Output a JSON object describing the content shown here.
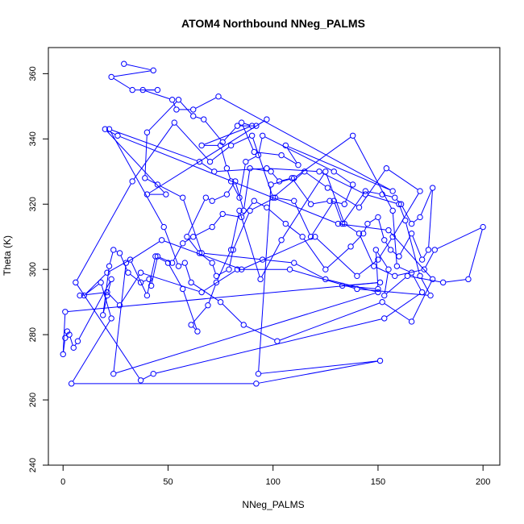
{
  "chart_data": {
    "type": "line",
    "title": "ATOM4 Northbound NNeg_PALMS",
    "xlabel": "NNeg_PALMS",
    "ylabel": "Theta (K)",
    "xlim": [
      -7,
      208
    ],
    "ylim": [
      240,
      368
    ],
    "x_ticks": [
      0,
      50,
      100,
      150,
      200
    ],
    "y_ticks": [
      240,
      260,
      280,
      300,
      320,
      340,
      360
    ],
    "grid": false,
    "legend": "none",
    "markers": "open-circle",
    "series": [
      {
        "color": "#0000ff",
        "points": [
          [
            29,
            363
          ],
          [
            43,
            361
          ],
          [
            23,
            359
          ],
          [
            33,
            355
          ],
          [
            45,
            355
          ],
          [
            38,
            355
          ],
          [
            52,
            352
          ],
          [
            54,
            349
          ],
          [
            62,
            349
          ],
          [
            74,
            353
          ],
          [
            157,
            324
          ],
          [
            106,
            338
          ],
          [
            112,
            332
          ],
          [
            104,
            335
          ],
          [
            91,
            336
          ],
          [
            85,
            345
          ],
          [
            90,
            344
          ],
          [
            66,
            338
          ],
          [
            75,
            338
          ],
          [
            78,
            331
          ],
          [
            80,
            327
          ],
          [
            84,
            322
          ],
          [
            87,
            333
          ],
          [
            93,
            335
          ],
          [
            95,
            341
          ],
          [
            129,
            330
          ],
          [
            138,
            326
          ],
          [
            134,
            320
          ],
          [
            127,
            321
          ],
          [
            118,
            320
          ],
          [
            109,
            328
          ],
          [
            103,
            327
          ],
          [
            99,
            330
          ],
          [
            89,
            331
          ],
          [
            86,
            318
          ],
          [
            82,
            327
          ],
          [
            78,
            323
          ],
          [
            71,
            321
          ],
          [
            68,
            322
          ],
          [
            59,
            310
          ],
          [
            65,
            305
          ],
          [
            71,
            302
          ],
          [
            73,
            298
          ],
          [
            79,
            300
          ],
          [
            81,
            306
          ],
          [
            89,
            318
          ],
          [
            101,
            322
          ],
          [
            110,
            321
          ],
          [
            118,
            310
          ],
          [
            129,
            321
          ],
          [
            133,
            314
          ],
          [
            144,
            324
          ],
          [
            152,
            323
          ],
          [
            158,
            322
          ],
          [
            161,
            320
          ],
          [
            166,
            314
          ],
          [
            170,
            316
          ],
          [
            176,
            325
          ],
          [
            174,
            306
          ],
          [
            171,
            303
          ],
          [
            166,
            311
          ],
          [
            160,
            304
          ],
          [
            156,
            306
          ],
          [
            153,
            309
          ],
          [
            150,
            316
          ],
          [
            145,
            314
          ],
          [
            143,
            311
          ],
          [
            137,
            307
          ],
          [
            125,
            300
          ],
          [
            114,
            310
          ],
          [
            106,
            314
          ],
          [
            97,
            319
          ],
          [
            91,
            321
          ],
          [
            85,
            316
          ],
          [
            76,
            317
          ],
          [
            71,
            313
          ],
          [
            62,
            310
          ],
          [
            57,
            308
          ],
          [
            52,
            302
          ],
          [
            45,
            304
          ],
          [
            42,
            295
          ],
          [
            41,
            297
          ],
          [
            37,
            296
          ],
          [
            31,
            299
          ],
          [
            27,
            305
          ],
          [
            24,
            306
          ],
          [
            22,
            301
          ],
          [
            19,
            286
          ],
          [
            21,
            292
          ],
          [
            23,
            297
          ],
          [
            7,
            278
          ],
          [
            5,
            276
          ],
          [
            3,
            280
          ],
          [
            2,
            281
          ],
          [
            1,
            279
          ],
          [
            0,
            274
          ],
          [
            1,
            287
          ],
          [
            151,
            296
          ],
          [
            133,
            295
          ],
          [
            150,
            294
          ],
          [
            149,
            306
          ],
          [
            155,
            300
          ],
          [
            153,
            292
          ],
          [
            164,
            298
          ],
          [
            181,
            296
          ],
          [
            193,
            297
          ],
          [
            200,
            313
          ],
          [
            177,
            306
          ],
          [
            172,
            300
          ],
          [
            158,
            298
          ],
          [
            148,
            301
          ],
          [
            141,
            311
          ],
          [
            134,
            314
          ],
          [
            125,
            330
          ],
          [
            104,
            309
          ],
          [
            94,
            297
          ],
          [
            84,
            318
          ],
          [
            80,
            306
          ],
          [
            73,
            296
          ],
          [
            69,
            289
          ],
          [
            61,
            283
          ],
          [
            64,
            281
          ],
          [
            57,
            294
          ],
          [
            50,
            302
          ],
          [
            44,
            304
          ],
          [
            40,
            292
          ],
          [
            32,
            303
          ],
          [
            21,
            299
          ],
          [
            10,
            292
          ],
          [
            18,
            296
          ],
          [
            23,
            285
          ],
          [
            4,
            265
          ],
          [
            92,
            265
          ],
          [
            151,
            272
          ],
          [
            93,
            268
          ],
          [
            99,
            326
          ],
          [
            110,
            328
          ],
          [
            138,
            341
          ],
          [
            157,
            318
          ],
          [
            159,
            301
          ],
          [
            166,
            299
          ],
          [
            171,
            293
          ],
          [
            153,
            285
          ],
          [
            43,
            268
          ],
          [
            37,
            266
          ],
          [
            6,
            296
          ],
          [
            33,
            327
          ],
          [
            53,
            345
          ],
          [
            70,
            333
          ],
          [
            80,
            338
          ],
          [
            90,
            341
          ],
          [
            100,
            322
          ],
          [
            115,
            330
          ],
          [
            126,
            325
          ],
          [
            141,
            319
          ],
          [
            154,
            331
          ],
          [
            170,
            324
          ],
          [
            157,
            310
          ],
          [
            150,
            303
          ],
          [
            140,
            298
          ],
          [
            120,
            310
          ],
          [
            85,
            300
          ],
          [
            47,
            309
          ],
          [
            30,
            302
          ],
          [
            24,
            268
          ],
          [
            150,
            293
          ],
          [
            125,
            297
          ],
          [
            110,
            302
          ],
          [
            95,
            303
          ],
          [
            66,
            305
          ],
          [
            57,
            322
          ],
          [
            45,
            326
          ],
          [
            39,
            328
          ],
          [
            40,
            342
          ],
          [
            55,
            352
          ],
          [
            62,
            347
          ],
          [
            67,
            346
          ],
          [
            76,
            339
          ],
          [
            83,
            344
          ],
          [
            92,
            344
          ],
          [
            97,
            346
          ],
          [
            40,
            323
          ],
          [
            49,
            323
          ],
          [
            20,
            343
          ],
          [
            26,
            341
          ],
          [
            131,
            314
          ],
          [
            155,
            312
          ],
          [
            176,
            297
          ],
          [
            166,
            284
          ],
          [
            152,
            290
          ],
          [
            102,
            278
          ],
          [
            86,
            283
          ],
          [
            75,
            290
          ],
          [
            61,
            296
          ],
          [
            58,
            302
          ],
          [
            55,
            301
          ],
          [
            48,
            313
          ],
          [
            22,
            343
          ],
          [
            65,
            333
          ],
          [
            72,
            330
          ],
          [
            97,
            331
          ],
          [
            122,
            330
          ],
          [
            144,
            323
          ],
          [
            160,
            320
          ],
          [
            163,
            315
          ],
          [
            170,
            298
          ],
          [
            175,
            292
          ],
          [
            140,
            294
          ],
          [
            108,
            300
          ],
          [
            83,
            300
          ],
          [
            66,
            293
          ],
          [
            37,
            299
          ],
          [
            27,
            289
          ],
          [
            21,
            293
          ],
          [
            8,
            292
          ]
        ]
      }
    ]
  }
}
